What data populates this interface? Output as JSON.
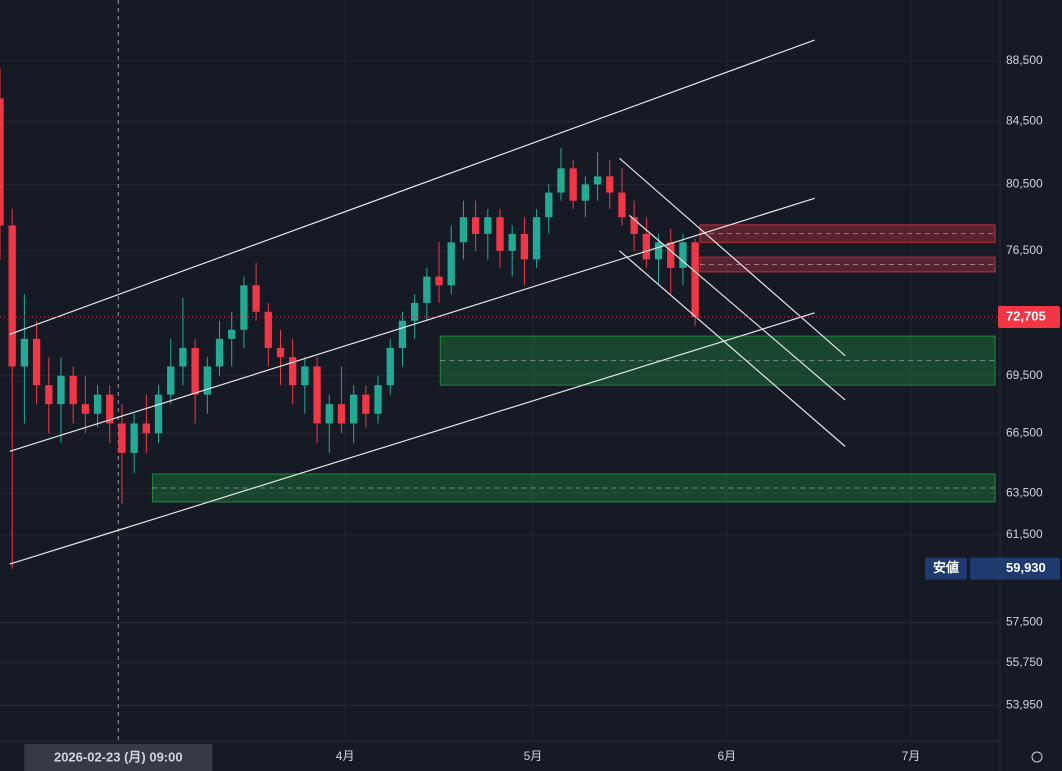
{
  "chart_data": {
    "type": "candlestick",
    "log_scale": true,
    "grid": true,
    "up_color": "#22ab94",
    "down_color": "#f23645",
    "x": [
      0,
      1,
      2,
      3,
      4,
      5,
      6,
      7,
      8,
      9,
      10,
      11,
      12,
      13,
      14,
      15,
      16,
      17,
      18,
      19,
      20,
      21,
      22,
      23,
      24,
      25,
      26,
      27,
      28,
      29,
      30,
      31,
      32,
      33,
      34,
      35,
      36,
      37,
      38,
      39,
      40,
      41,
      42,
      43,
      44,
      45,
      46,
      47,
      48,
      49,
      50,
      51,
      52,
      53,
      54,
      55,
      56,
      57
    ],
    "open": [
      86000,
      78000,
      70000,
      71500,
      69000,
      68000,
      69500,
      68000,
      67500,
      68500,
      67000,
      65500,
      67000,
      66500,
      68500,
      70000,
      71000,
      68500,
      70000,
      71500,
      72000,
      74500,
      73000,
      71000,
      70500,
      69000,
      70000,
      67000,
      68000,
      67000,
      68500,
      67500,
      69000,
      71000,
      72500,
      73500,
      75000,
      74500,
      77000,
      78500,
      77500,
      78500,
      76500,
      77500,
      76000,
      78500,
      80000,
      81500,
      79500,
      80500,
      81000,
      80000,
      78500,
      77500,
      76000,
      77000,
      75500,
      77000
    ],
    "high": [
      88000,
      79000,
      74000,
      72500,
      70500,
      70500,
      70000,
      69500,
      69000,
      69000,
      68000,
      67500,
      68500,
      69000,
      71500,
      73800,
      71500,
      70500,
      72500,
      73000,
      75000,
      75800,
      73500,
      72000,
      71500,
      70500,
      70500,
      68500,
      70000,
      69000,
      69000,
      69500,
      71500,
      73000,
      74000,
      75500,
      77000,
      78000,
      79500,
      79500,
      79000,
      79000,
      78000,
      78500,
      79000,
      80500,
      82800,
      82000,
      81000,
      82500,
      82000,
      81500,
      79500,
      78500,
      77500,
      77800,
      77500,
      77200
    ],
    "low": [
      76000,
      59930,
      67000,
      68000,
      66500,
      66000,
      67000,
      66500,
      66800,
      66000,
      63000,
      64500,
      65500,
      66000,
      68000,
      69000,
      67000,
      67500,
      69500,
      70000,
      71000,
      72500,
      70000,
      69000,
      68000,
      67500,
      66000,
      65500,
      66500,
      66000,
      66800,
      67000,
      68500,
      70000,
      71500,
      72500,
      73500,
      74000,
      76000,
      76500,
      76000,
      75500,
      75000,
      74500,
      75500,
      77500,
      79500,
      79000,
      78500,
      79500,
      79000,
      78000,
      76500,
      75500,
      74500,
      74000,
      74500,
      72200
    ],
    "close": [
      78000,
      70000,
      71500,
      69000,
      68000,
      69500,
      68000,
      67500,
      68500,
      67000,
      65500,
      67000,
      66500,
      68500,
      70000,
      71000,
      68500,
      70000,
      71500,
      72000,
      74500,
      73000,
      71000,
      70500,
      69000,
      70000,
      67000,
      68000,
      67000,
      68500,
      67500,
      69000,
      71000,
      72500,
      73500,
      75000,
      74500,
      77000,
      78500,
      77500,
      78500,
      76500,
      77500,
      76000,
      78500,
      80000,
      81500,
      79500,
      80500,
      81000,
      80000,
      78500,
      77500,
      76000,
      77000,
      75500,
      77000,
      72705
    ],
    "xlim": [
      0,
      82
    ],
    "ylim": [
      52500,
      92750
    ],
    "xticks": [
      {
        "value": 28.3,
        "label": "4月"
      },
      {
        "value": 43.7,
        "label": "5月"
      },
      {
        "value": 59.6,
        "label": "6月"
      },
      {
        "value": 74.7,
        "label": "7月"
      }
    ],
    "yticks": [
      {
        "value": 88500,
        "label": "88,500"
      },
      {
        "value": 84500,
        "label": "84,500"
      },
      {
        "value": 80500,
        "label": "80,500"
      },
      {
        "value": 76500,
        "label": "76,500"
      },
      {
        "value": 69500,
        "label": "69,500"
      },
      {
        "value": 66500,
        "label": "66,500"
      },
      {
        "value": 63500,
        "label": "63,500"
      },
      {
        "value": 61500,
        "label": "61,500"
      },
      {
        "value": 57500,
        "label": "57,500"
      },
      {
        "value": 55750,
        "label": "55,750"
      },
      {
        "value": 53950,
        "label": "53,950"
      }
    ],
    "last_price": {
      "value": 72705,
      "label": "72,705"
    },
    "low_marker": {
      "name": "安値",
      "value": 59930,
      "label": "59,930"
    },
    "crosshair": {
      "x": 9.7,
      "label": "2026-02-23 (月)  09:00"
    },
    "zones": [
      {
        "x": [
          57.4,
          81.6
        ],
        "y": [
          77000,
          78040
        ],
        "color": "#f23645"
      },
      {
        "x": [
          57.4,
          81.6
        ],
        "y": [
          75270,
          76130
        ],
        "color": "#f23645"
      },
      {
        "x": [
          36.1,
          81.6
        ],
        "y": [
          69000,
          71650
        ],
        "color": "#22ab44"
      },
      {
        "x": [
          12.5,
          81.6
        ],
        "y": [
          63080,
          64450
        ],
        "color": "#22ab44"
      }
    ],
    "trendlines": [
      {
        "x": [
          0.8,
          66.8
        ],
        "y": [
          71750,
          89940
        ]
      },
      {
        "x": [
          0.8,
          66.8
        ],
        "y": [
          65580,
          79650
        ]
      },
      {
        "x": [
          0.8,
          66.8
        ],
        "y": [
          60140,
          72940
        ]
      },
      {
        "x": [
          50.8,
          69.3
        ],
        "y": [
          82130,
          70580
        ]
      },
      {
        "x": [
          51.6,
          69.3
        ],
        "y": [
          78610,
          68220
        ]
      },
      {
        "x": [
          50.8,
          69.3
        ],
        "y": [
          76500,
          65830
        ]
      }
    ]
  }
}
